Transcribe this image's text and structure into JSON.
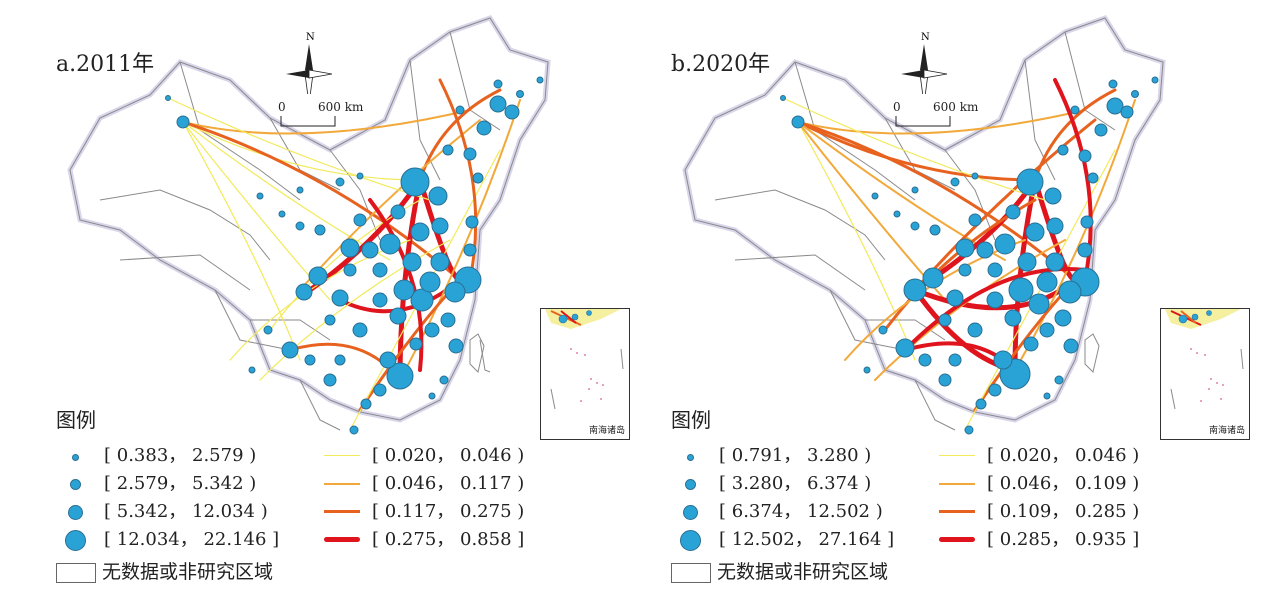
{
  "panels": [
    {
      "title": "a.2011年",
      "north": "N",
      "scale": {
        "zero": "0",
        "end": "600 km"
      },
      "inset_label": "南海诸岛",
      "legend_title": "图例",
      "nodes_legend": [
        "[ 0.383， 2.579 )",
        "[ 2.579， 5.342 )",
        "[ 5.342， 12.034 )",
        "[ 12.034， 22.146 ]"
      ],
      "lines_legend": [
        "[ 0.020， 0.046 )",
        "[ 0.046， 0.117 )",
        "[ 0.117， 0.275 )",
        "[ 0.275， 0.858 ]"
      ],
      "nodata_label": "无数据或非研究区域"
    },
    {
      "title": "b.2020年",
      "north": "N",
      "scale": {
        "zero": "0",
        "end": "600 km"
      },
      "inset_label": "南海诸岛",
      "legend_title": "图例",
      "nodes_legend": [
        "[ 0.791， 3.280 )",
        "[ 3.280， 6.374 )",
        "[ 6.374， 12.502 )",
        "[ 12.502， 27.164 ]"
      ],
      "lines_legend": [
        "[ 0.020， 0.046 )",
        "[ 0.046， 0.109 )",
        "[ 0.109， 0.285 )",
        "[ 0.285， 0.935 ]"
      ],
      "nodata_label": "无数据或非研究区域"
    }
  ],
  "colors": {
    "node_fill": "#29a3d6",
    "node_stroke": "#2a6f93",
    "line_class_1": "#f2ea5a",
    "line_class_2": "#f2a93b",
    "line_class_3": "#e8621f",
    "line_class_4": "#e0141c",
    "boundary": "#8a8a8a",
    "boundary_glow": "#b9b3d9"
  }
}
